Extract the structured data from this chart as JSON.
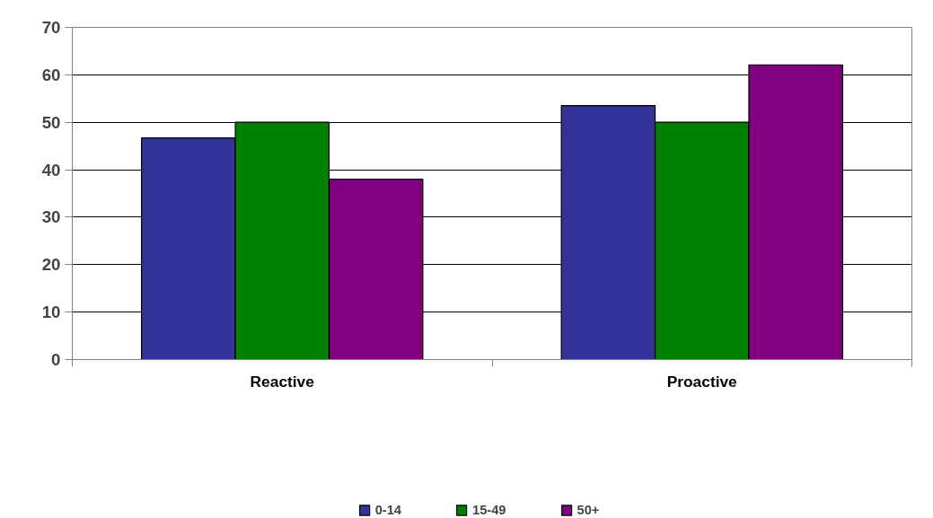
{
  "chart_data": {
    "type": "bar",
    "categories": [
      "Reactive",
      "Proactive"
    ],
    "series": [
      {
        "name": "0-14",
        "color": "#333399",
        "values": [
          46.7,
          53.5
        ]
      },
      {
        "name": "15-49",
        "color": "#008000",
        "values": [
          50,
          50
        ]
      },
      {
        "name": "50+",
        "color": "#800080",
        "values": [
          38,
          62.1
        ]
      }
    ],
    "ylim": [
      0,
      70
    ],
    "yticks": [
      0,
      10,
      20,
      30,
      40,
      50,
      60,
      70
    ],
    "grid": "y",
    "legend": "bottom"
  }
}
